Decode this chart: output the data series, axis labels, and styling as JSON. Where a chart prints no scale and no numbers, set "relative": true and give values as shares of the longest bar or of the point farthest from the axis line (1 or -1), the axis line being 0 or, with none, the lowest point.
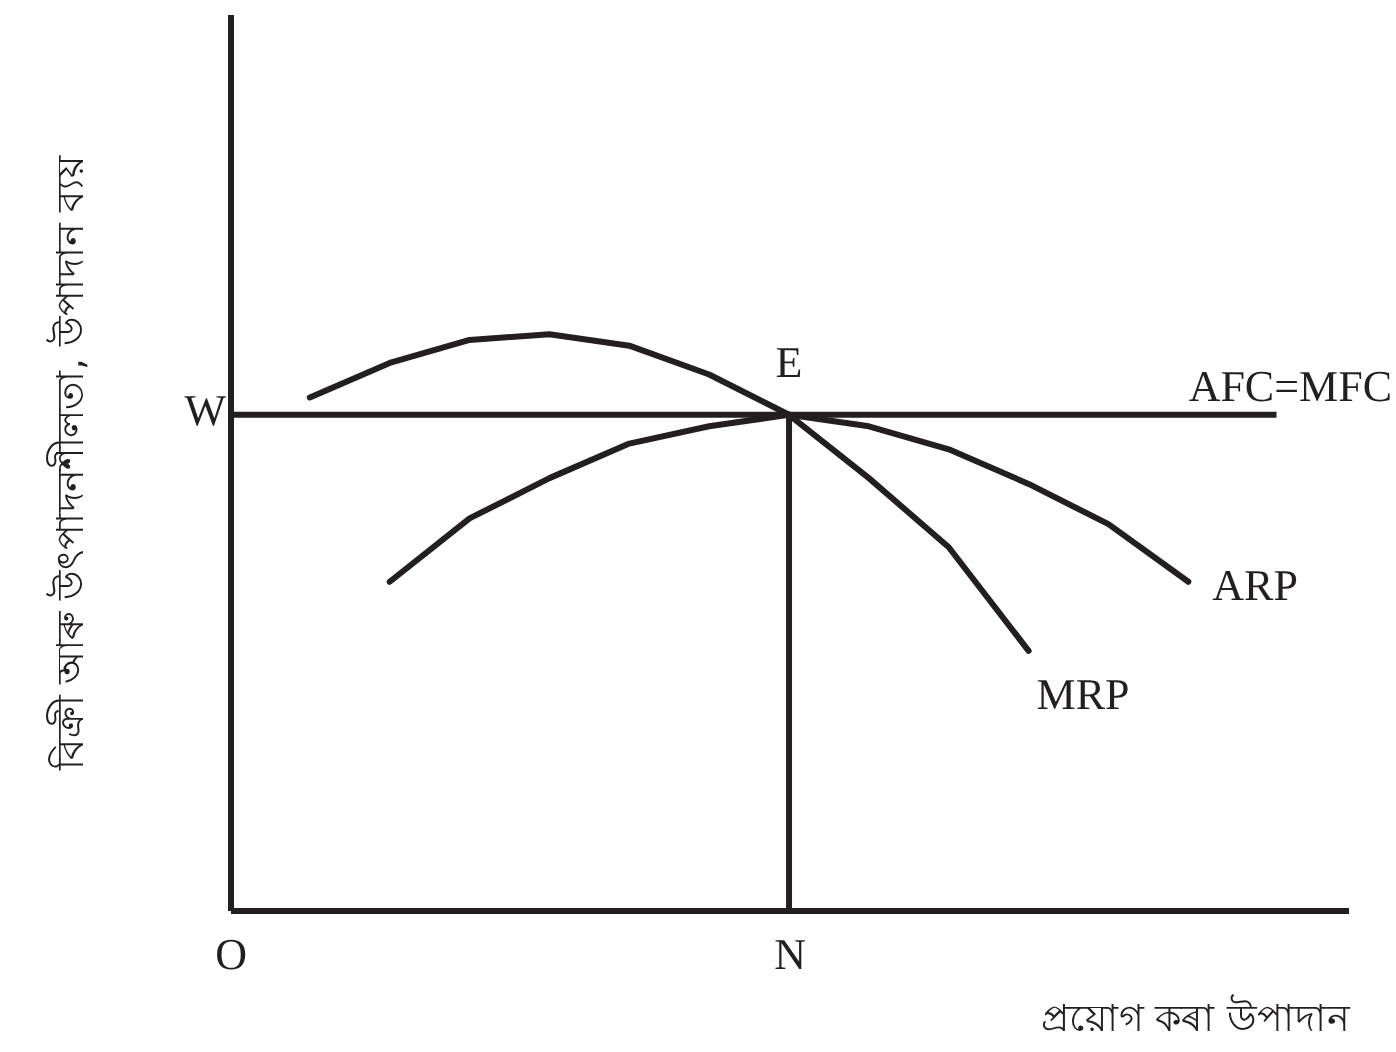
{
  "chart_data": {
    "type": "line",
    "relative": true,
    "grid": false,
    "marker": "none",
    "line_style": "solid",
    "xlabel": "প্ৰয়োগ কৰা উপাদান",
    "ylabel": "বিক্ৰী আৰু উৎপাদনশীলতা, উপাদান ব্যয়",
    "categories": [
      "O",
      null,
      null,
      null,
      null,
      null,
      null,
      "N",
      null,
      null,
      null,
      null,
      null,
      null,
      null
    ],
    "series": [
      {
        "name": "MRP",
        "color": "#231f20",
        "values": [
          null,
          0.89,
          0.95,
          0.99,
          1.0,
          0.98,
          0.93,
          0.86,
          0.75,
          0.63,
          0.45,
          null,
          null,
          null,
          null
        ]
      },
      {
        "name": "ARP",
        "color": "#231f20",
        "values": [
          null,
          null,
          0.57,
          0.68,
          0.75,
          0.81,
          0.84,
          0.86,
          0.84,
          0.8,
          0.74,
          0.67,
          0.57,
          null,
          null
        ]
      }
    ],
    "ref_lines": [
      {
        "axis": "y",
        "value": 0.86,
        "label": "AFC=MFC",
        "color": "#231f20"
      },
      {
        "axis": "x",
        "value": "N",
        "color": "#231f20"
      }
    ],
    "annotations": [
      {
        "text": "E",
        "x": "N",
        "y": 0.86
      },
      "W"
    ]
  }
}
